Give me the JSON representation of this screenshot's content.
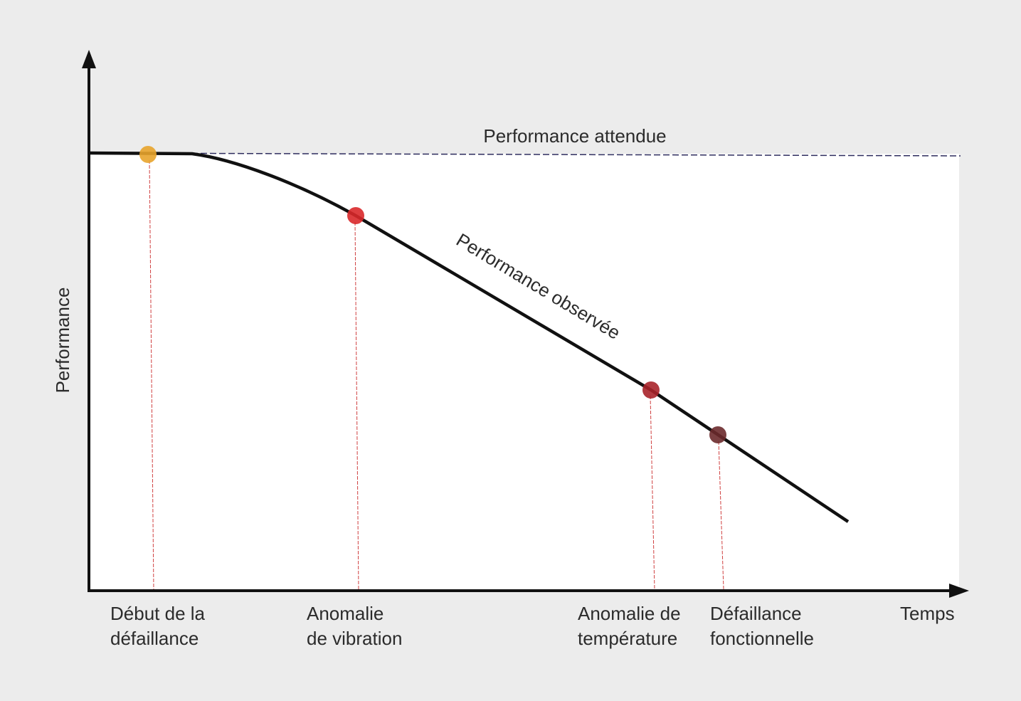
{
  "axes": {
    "y_label": "Performance",
    "x_label": "Temps"
  },
  "curves": {
    "expected": "Performance attendue",
    "observed": "Performance observée"
  },
  "events": [
    {
      "label": [
        "Début de la",
        "défaillance"
      ],
      "color": "#e8a42c"
    },
    {
      "label": [
        "Anomalie",
        "de vibration"
      ],
      "color": "#d9282a"
    },
    {
      "label": [
        "Anomalie de",
        "température"
      ],
      "color": "#a8232a"
    },
    {
      "label": [
        "Défaillance",
        "fonctionnelle"
      ],
      "color": "#6b2a2c"
    }
  ]
}
